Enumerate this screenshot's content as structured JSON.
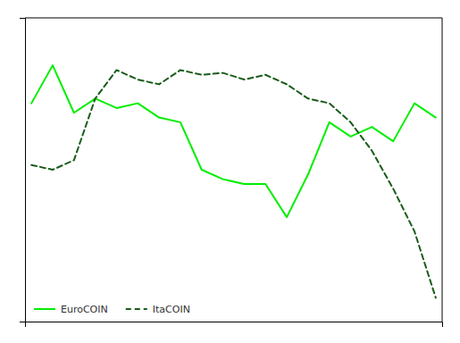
{
  "chart_data": {
    "type": "line",
    "x": [
      0,
      1,
      2,
      3,
      4,
      5,
      6,
      7,
      8,
      9,
      10,
      11,
      12,
      13,
      14,
      15,
      16,
      17,
      18,
      19
    ],
    "series": [
      {
        "name": "EuroCOIN",
        "color": "#00ee00",
        "line_style": "solid",
        "values": [
          1.3,
          1.7,
          1.2,
          1.35,
          1.25,
          1.3,
          1.15,
          1.1,
          0.6,
          0.5,
          0.45,
          0.45,
          0.1,
          0.55,
          1.1,
          0.95,
          1.05,
          0.9,
          1.3,
          1.15
        ]
      },
      {
        "name": "ItaCOIN",
        "color": "#1a5c1a",
        "line_style": "dashed",
        "values": [
          0.65,
          0.6,
          0.7,
          1.35,
          1.65,
          1.55,
          1.5,
          1.65,
          1.6,
          1.62,
          1.55,
          1.6,
          1.5,
          1.35,
          1.3,
          1.1,
          0.8,
          0.4,
          -0.05,
          -0.75
        ]
      }
    ],
    "xlim": [
      -0.3,
      19.3
    ],
    "ylim": [
      -1.0,
      2.2
    ],
    "xticks": [],
    "yticks": [],
    "tick_labels": false,
    "grid": false,
    "legend": "lower left"
  }
}
